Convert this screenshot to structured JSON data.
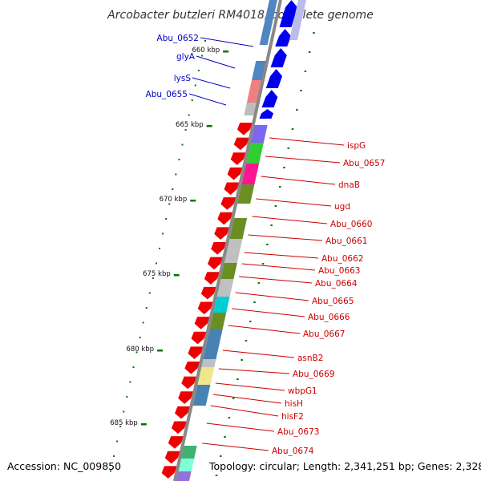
{
  "title": "Arcobacter butzleri RM4018, complete genome",
  "accession": "Accession: NC_009850",
  "topology": "Topology: circular; Length: 2,341,251 bp; Genes: 2,328",
  "colors": {
    "backbone": "#888888",
    "forward_label": "#0000cc",
    "reverse_label": "#cc0000",
    "forward_gene": "#0000ee",
    "reverse_gene": "#ee0000",
    "tick": "#007700"
  },
  "ticks": [
    {
      "label": "660 kbp"
    },
    {
      "label": "665 kbp"
    },
    {
      "label": "670 kbp"
    },
    {
      "label": "675 kbp"
    },
    {
      "label": "680 kbp"
    },
    {
      "label": "685 kbp"
    }
  ],
  "forward_genes": [
    {
      "label": "Abu_0652"
    },
    {
      "label": "glyA"
    },
    {
      "label": "lysS"
    },
    {
      "label": "Abu_0655"
    }
  ],
  "reverse_genes": [
    {
      "label": "ispG"
    },
    {
      "label": "Abu_0657"
    },
    {
      "label": "dnaB"
    },
    {
      "label": "ugd"
    },
    {
      "label": "Abu_0660"
    },
    {
      "label": "Abu_0661"
    },
    {
      "label": "Abu_0662"
    },
    {
      "label": "Abu_0663"
    },
    {
      "label": "Abu_0664"
    },
    {
      "label": "Abu_0665"
    },
    {
      "label": "Abu_0666"
    },
    {
      "label": "Abu_0667"
    },
    {
      "label": "asnB2"
    },
    {
      "label": "Abu_0669"
    },
    {
      "label": "wbpG1"
    },
    {
      "label": "hisH"
    },
    {
      "label": "hisF2"
    },
    {
      "label": "Abu_0673"
    },
    {
      "label": "Abu_0674"
    }
  ]
}
